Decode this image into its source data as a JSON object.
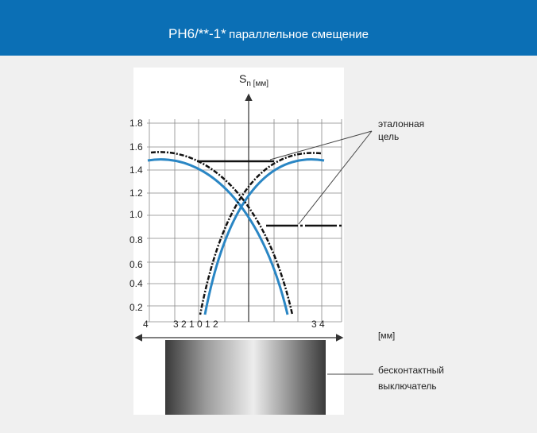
{
  "header": {
    "title": "PH6/**-1*",
    "subtitle": "параллельное смещение"
  },
  "diagram": {
    "axis_label": "S",
    "axis_label_sub": "n [мм]",
    "y_labels": [
      "1.8",
      "1.6",
      "1.4",
      "1.2",
      "1.0",
      "0.8",
      "0.6",
      "0.4",
      "0.2"
    ],
    "x_labels": [
      "4",
      "3 2 1 0 1 2",
      "3 4"
    ],
    "x_unit": "[мм]",
    "target_label": [
      "эталонная",
      "цель"
    ],
    "sensor_label": [
      "бесконтактный",
      "выключатель"
    ]
  }
}
